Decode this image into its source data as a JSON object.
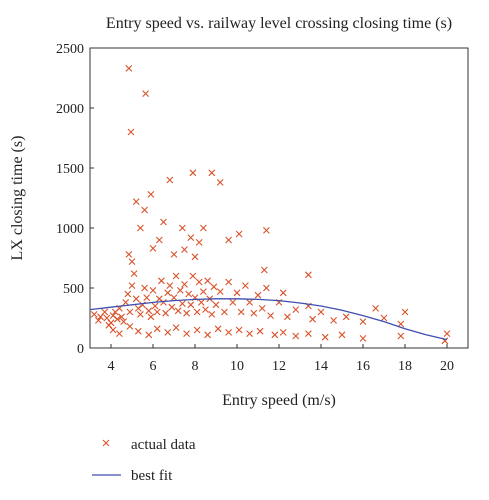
{
  "chart_data": {
    "type": "scatter",
    "title": "Entry speed vs. railway level crossing closing time (s)",
    "xlabel": "Entry speed (m/s)",
    "ylabel": "LX closing time (s)",
    "xlim": [
      3,
      21
    ],
    "ylim": [
      0,
      2500
    ],
    "xticks": [
      4,
      6,
      8,
      10,
      12,
      14,
      16,
      18,
      20
    ],
    "yticks": [
      0,
      500,
      1000,
      1500,
      2000,
      2500
    ],
    "grid": false,
    "legend_placement": "bottom-left",
    "series": [
      {
        "name": "actual data",
        "marker": "x",
        "color": "#d9542c",
        "points": [
          [
            3.2,
            280
          ],
          [
            3.4,
            230
          ],
          [
            3.5,
            260
          ],
          [
            3.7,
            300
          ],
          [
            3.8,
            250
          ],
          [
            3.9,
            190
          ],
          [
            4.0,
            210
          ],
          [
            4.1,
            270
          ],
          [
            4.2,
            300
          ],
          [
            4.3,
            240
          ],
          [
            4.4,
            330
          ],
          [
            4.5,
            260
          ],
          [
            4.6,
            220
          ],
          [
            4.7,
            380
          ],
          [
            4.8,
            450
          ],
          [
            4.9,
            300
          ],
          [
            5.0,
            520
          ],
          [
            5.1,
            620
          ],
          [
            5.2,
            410
          ],
          [
            5.3,
            330
          ],
          [
            5.4,
            280
          ],
          [
            5.5,
            360
          ],
          [
            5.6,
            500
          ],
          [
            5.7,
            420
          ],
          [
            5.8,
            310
          ],
          [
            5.9,
            260
          ],
          [
            6.0,
            480
          ],
          [
            6.1,
            350
          ],
          [
            6.2,
            300
          ],
          [
            6.3,
            410
          ],
          [
            6.4,
            560
          ],
          [
            6.5,
            380
          ],
          [
            6.6,
            290
          ],
          [
            6.7,
            460
          ],
          [
            6.8,
            520
          ],
          [
            6.9,
            340
          ],
          [
            7.0,
            420
          ],
          [
            7.1,
            600
          ],
          [
            7.2,
            310
          ],
          [
            7.3,
            480
          ],
          [
            7.4,
            370
          ],
          [
            7.5,
            530
          ],
          [
            7.6,
            290
          ],
          [
            7.7,
            450
          ],
          [
            7.8,
            360
          ],
          [
            7.9,
            600
          ],
          [
            8.0,
            420
          ],
          [
            8.1,
            300
          ],
          [
            8.2,
            550
          ],
          [
            8.3,
            380
          ],
          [
            8.4,
            470
          ],
          [
            8.5,
            320
          ],
          [
            8.6,
            560
          ],
          [
            8.7,
            410
          ],
          [
            8.8,
            280
          ],
          [
            8.9,
            510
          ],
          [
            9.0,
            360
          ],
          [
            9.2,
            470
          ],
          [
            9.4,
            300
          ],
          [
            9.6,
            550
          ],
          [
            9.8,
            380
          ],
          [
            10.0,
            460
          ],
          [
            10.2,
            300
          ],
          [
            10.4,
            520
          ],
          [
            10.6,
            380
          ],
          [
            10.8,
            290
          ],
          [
            11.0,
            440
          ],
          [
            11.2,
            330
          ],
          [
            11.4,
            500
          ],
          [
            11.6,
            270
          ],
          [
            12.0,
            380
          ],
          [
            12.4,
            260
          ],
          [
            12.8,
            320
          ],
          [
            13.4,
            350
          ],
          [
            13.6,
            240
          ],
          [
            14.0,
            300
          ],
          [
            14.6,
            230
          ],
          [
            15.2,
            260
          ],
          [
            16.0,
            220
          ],
          [
            17.0,
            250
          ],
          [
            17.8,
            200
          ],
          [
            18.0,
            300
          ],
          [
            20.0,
            120
          ],
          [
            4.1,
            150
          ],
          [
            4.4,
            120
          ],
          [
            4.9,
            180
          ],
          [
            5.3,
            140
          ],
          [
            5.8,
            110
          ],
          [
            6.2,
            160
          ],
          [
            6.7,
            130
          ],
          [
            7.1,
            170
          ],
          [
            7.6,
            120
          ],
          [
            8.1,
            150
          ],
          [
            8.6,
            110
          ],
          [
            9.1,
            160
          ],
          [
            9.6,
            130
          ],
          [
            10.1,
            150
          ],
          [
            10.6,
            120
          ],
          [
            11.1,
            140
          ],
          [
            11.8,
            110
          ],
          [
            12.2,
            130
          ],
          [
            12.8,
            100
          ],
          [
            13.4,
            120
          ],
          [
            14.2,
            90
          ],
          [
            15.0,
            110
          ],
          [
            16.0,
            80
          ],
          [
            17.8,
            100
          ],
          [
            19.9,
            60
          ],
          [
            5.4,
            1000
          ],
          [
            5.6,
            1150
          ],
          [
            5.2,
            1220
          ],
          [
            5.9,
            1280
          ],
          [
            6.5,
            1050
          ],
          [
            6.8,
            1400
          ],
          [
            7.4,
            1000
          ],
          [
            7.8,
            920
          ],
          [
            7.9,
            1460
          ],
          [
            8.2,
            880
          ],
          [
            8.4,
            1000
          ],
          [
            8.8,
            1460
          ],
          [
            9.2,
            1380
          ],
          [
            9.6,
            900
          ],
          [
            10.1,
            950
          ],
          [
            11.4,
            980
          ],
          [
            11.3,
            650
          ],
          [
            13.4,
            610
          ],
          [
            12.2,
            460
          ],
          [
            16.6,
            330
          ],
          [
            6.0,
            830
          ],
          [
            6.3,
            900
          ],
          [
            7.0,
            780
          ],
          [
            7.5,
            820
          ],
          [
            8.0,
            760
          ],
          [
            4.85,
            2330
          ],
          [
            5.65,
            2120
          ],
          [
            4.95,
            1800
          ],
          [
            4.85,
            780
          ],
          [
            5.0,
            720
          ]
        ]
      },
      {
        "name": "best fit",
        "type": "line",
        "color": "#3f4fb0",
        "x": [
          3,
          4,
          5,
          6,
          7,
          8,
          9,
          10,
          11,
          12,
          13,
          14,
          15,
          16,
          17,
          18,
          19,
          20
        ],
        "y": [
          320,
          340,
          360,
          380,
          395,
          405,
          410,
          410,
          405,
          395,
          375,
          350,
          315,
          270,
          220,
          160,
          110,
          70
        ]
      }
    ]
  }
}
